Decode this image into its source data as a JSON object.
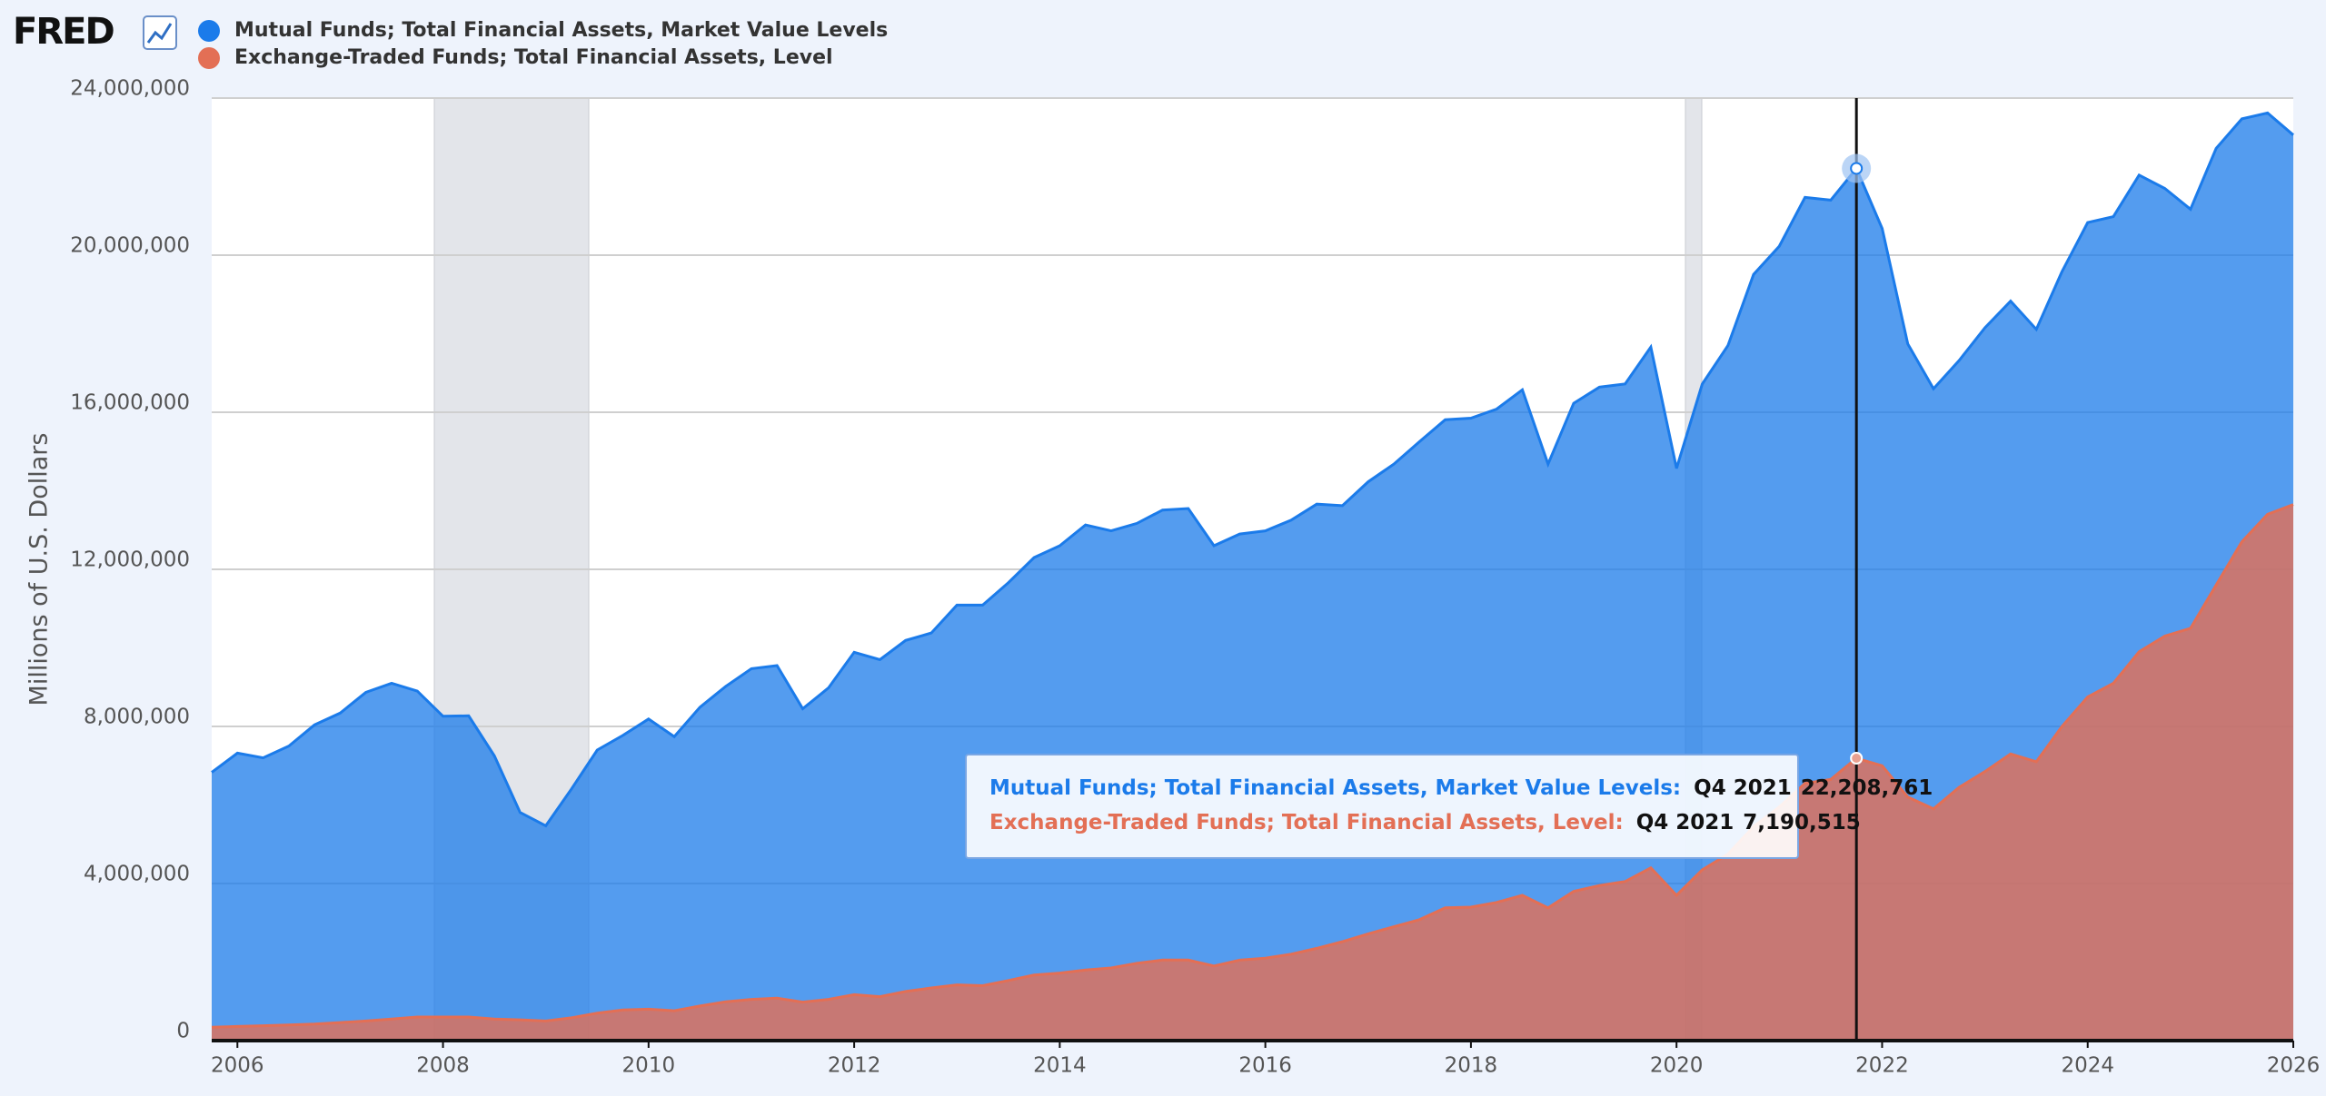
{
  "logo": "FRED",
  "chart_data": {
    "type": "area",
    "ylabel": "Millions of U.S. Dollars",
    "x": [
      "Q4 2005",
      "Q1 2006",
      "Q2 2006",
      "Q3 2006",
      "Q4 2006",
      "Q1 2007",
      "Q2 2007",
      "Q3 2007",
      "Q4 2007",
      "Q1 2008",
      "Q2 2008",
      "Q3 2008",
      "Q4 2008",
      "Q1 2009",
      "Q2 2009",
      "Q3 2009",
      "Q4 2009",
      "Q1 2010",
      "Q2 2010",
      "Q3 2010",
      "Q4 2010",
      "Q1 2011",
      "Q2 2011",
      "Q3 2011",
      "Q4 2011",
      "Q1 2012",
      "Q2 2012",
      "Q3 2012",
      "Q4 2012",
      "Q1 2013",
      "Q2 2013",
      "Q3 2013",
      "Q4 2013",
      "Q1 2014",
      "Q2 2014",
      "Q3 2014",
      "Q4 2014",
      "Q1 2015",
      "Q2 2015",
      "Q3 2015",
      "Q4 2015",
      "Q1 2016",
      "Q2 2016",
      "Q3 2016",
      "Q4 2016",
      "Q1 2017",
      "Q2 2017",
      "Q3 2017",
      "Q4 2017",
      "Q1 2018",
      "Q2 2018",
      "Q3 2018",
      "Q4 2018",
      "Q1 2019",
      "Q2 2019",
      "Q3 2019",
      "Q4 2019",
      "Q1 2020",
      "Q2 2020",
      "Q3 2020",
      "Q4 2020",
      "Q1 2021",
      "Q2 2021",
      "Q3 2021",
      "Q4 2021",
      "Q1 2022",
      "Q2 2022",
      "Q3 2022",
      "Q4 2022",
      "Q1 2023",
      "Q2 2023",
      "Q3 2023",
      "Q4 2023",
      "Q1 2024",
      "Q2 2024",
      "Q3 2024",
      "Q4 2024",
      "Q1 2025",
      "Q2 2025",
      "Q3 2025",
      "Q4 2025",
      "Q1 2026"
    ],
    "series": [
      {
        "name": "Mutual Funds; Total Financial Assets, Market Value Levels",
        "color": "#1b7bea",
        "values": [
          6830000,
          7320000,
          7200000,
          7500000,
          8040000,
          8340000,
          8870000,
          9100000,
          8900000,
          8260000,
          8270000,
          7250000,
          5810000,
          5470000,
          6410000,
          7400000,
          7770000,
          8190000,
          7740000,
          8490000,
          9020000,
          9470000,
          9550000,
          8450000,
          8980000,
          9890000,
          9700000,
          10190000,
          10380000,
          11090000,
          11090000,
          11660000,
          12300000,
          12600000,
          13130000,
          12980000,
          13170000,
          13510000,
          13550000,
          12600000,
          12900000,
          12980000,
          13250000,
          13660000,
          13620000,
          14230000,
          14680000,
          15250000,
          15810000,
          15850000,
          16080000,
          16570000,
          14680000,
          16230000,
          16640000,
          16720000,
          17660000,
          14570000,
          16720000,
          17700000,
          19510000,
          20230000,
          21470000,
          21400000,
          22208761,
          20680000,
          17740000,
          16600000,
          17320000,
          18150000,
          18830000,
          18110000,
          19580000,
          20830000,
          20980000,
          22040000,
          21700000,
          21170000,
          22720000,
          23470000,
          23620000,
          23060000
        ]
      },
      {
        "name": "Exchange-Traded Funds; Total Financial Assets, Level",
        "color": "#e36f55",
        "values": [
          340000,
          360000,
          380000,
          400000,
          420000,
          460000,
          500000,
          550000,
          600000,
          600000,
          600000,
          550000,
          530000,
          500000,
          580000,
          700000,
          780000,
          800000,
          760000,
          880000,
          990000,
          1050000,
          1080000,
          980000,
          1050000,
          1170000,
          1120000,
          1250000,
          1340000,
          1420000,
          1400000,
          1530000,
          1670000,
          1720000,
          1800000,
          1850000,
          1970000,
          2050000,
          2050000,
          1900000,
          2050000,
          2100000,
          2200000,
          2350000,
          2520000,
          2720000,
          2900000,
          3080000,
          3380000,
          3400000,
          3520000,
          3700000,
          3380000,
          3800000,
          3950000,
          4050000,
          4400000,
          3700000,
          4350000,
          4750000,
          5450000,
          5950000,
          6550000,
          6650000,
          7190515,
          7000000,
          6200000,
          5900000,
          6450000,
          6850000,
          7300000,
          7100000,
          8000000,
          8750000,
          9100000,
          9900000,
          10300000,
          10500000,
          11600000,
          12700000,
          13400000,
          13650000
        ]
      }
    ],
    "xlim": [
      "Q4 2005",
      "Q1 2026"
    ],
    "xticks": [
      2006,
      2008,
      2010,
      2012,
      2014,
      2016,
      2018,
      2020,
      2022,
      2024,
      2026
    ],
    "ylim": [
      0,
      24000000
    ],
    "yticks": [
      0,
      {
        "value": 4000000,
        "label": "4,000,000"
      },
      {
        "value": 8000000,
        "label": "8,000,000"
      },
      {
        "value": 12000000,
        "label": "12,000,000"
      },
      {
        "value": 16000000,
        "label": "16,000,000"
      },
      {
        "value": 20000000,
        "label": "20,000,000"
      },
      {
        "value": 24000000,
        "label": "24,000,000"
      }
    ],
    "grid": true,
    "legend": "top-left",
    "tooltip": {
      "x": "Q4 2021",
      "labels": [
        "Mutual Funds; Total Financial Assets, Market Value Levels:",
        "Exchange-Traded Funds; Total Financial Assets, Level:"
      ],
      "values": [
        22208761,
        7190515
      ],
      "value_labels": [
        "22,208,761",
        "7,190,515"
      ]
    }
  }
}
